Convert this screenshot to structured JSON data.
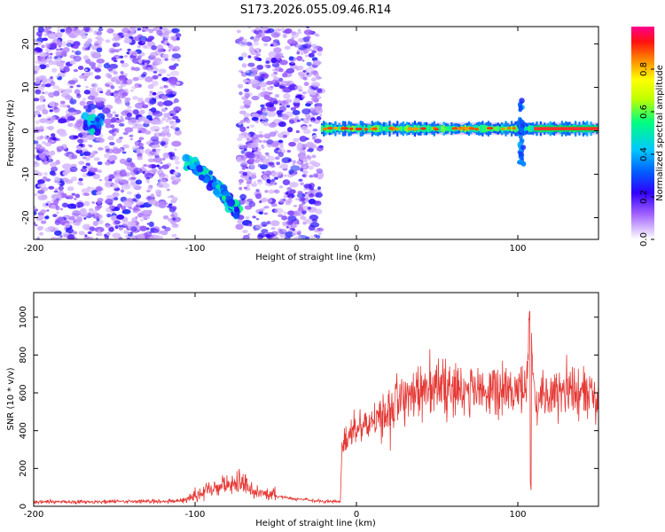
{
  "title": "S173.2026.055.09.46.R14",
  "chart_data": [
    {
      "type": "heatmap",
      "name": "spectrogram",
      "xlabel": "Height of straight line (km)",
      "ylabel": "Frequency (Hz)",
      "xlim": [
        -200,
        150
      ],
      "ylim": [
        -25,
        24
      ],
      "xticks": [
        -200,
        -100,
        0,
        100
      ],
      "xtick_labels": [
        "-200",
        "-100",
        "0",
        "100"
      ],
      "yticks": [
        -20,
        -10,
        0,
        10,
        20
      ],
      "ytick_labels": [
        "-20",
        "-10",
        "0",
        "10",
        "20"
      ],
      "colorbar": {
        "label": "Normalized spectral amplitude",
        "range": [
          0,
          1
        ],
        "ticks": [
          0,
          0.2,
          0.4,
          0.6,
          0.8
        ],
        "tick_labels": [
          "0.0",
          "0.2",
          "0.4",
          "0.6",
          "0.8"
        ],
        "colors": [
          "#ffffff",
          "#8000ff",
          "#0000ff",
          "#00c8ff",
          "#00ff80",
          "#ffff00",
          "#ff8000",
          "#ff0000",
          "#ff0080"
        ]
      },
      "features": [
        {
          "desc": "noise speckle",
          "x_range": [
            -200,
            -20
          ],
          "y_range": [
            -25,
            24
          ],
          "amplitude": 0.2
        },
        {
          "desc": "blob",
          "x": -163,
          "y": 1.5,
          "amplitude": 0.5
        },
        {
          "desc": "curved arc",
          "x_range": [
            -105,
            -73
          ],
          "y_start": -7,
          "y_end": -19,
          "amplitude": 0.55
        },
        {
          "desc": "carrier line",
          "x_range": [
            -22,
            150
          ],
          "y": 0.5,
          "amplitude": 0.85
        },
        {
          "desc": "disturbance",
          "x": 102,
          "y_range": [
            -8,
            7
          ],
          "amplitude": 0.35
        }
      ]
    },
    {
      "type": "line",
      "name": "snr",
      "xlabel": "Height of straight line (km)",
      "ylabel": "SNR (10 * v/v)",
      "xlim": [
        -200,
        150
      ],
      "ylim": [
        0,
        1130
      ],
      "xticks": [
        -200,
        -100,
        0,
        100
      ],
      "xtick_labels": [
        "-200",
        "-100",
        "0",
        "100"
      ],
      "yticks": [
        0,
        200,
        400,
        600,
        800,
        1000
      ],
      "ytick_labels": [
        "0",
        "200",
        "400",
        "600",
        "800",
        "1000"
      ],
      "color": "#e53935",
      "series": [
        {
          "name": "SNR envelope",
          "x": [
            -200,
            -150,
            -110,
            -100,
            -90,
            -75,
            -60,
            -40,
            -20,
            -10,
            -9,
            -5,
            0,
            10,
            18,
            20,
            25,
            35,
            45,
            60,
            80,
            100,
            105,
            108,
            110,
            115,
            130,
            150
          ],
          "y": [
            22,
            25,
            28,
            50,
            90,
            130,
            70,
            40,
            25,
            25,
            300,
            380,
            420,
            470,
            480,
            530,
            560,
            600,
            640,
            620,
            610,
            610,
            600,
            900,
            550,
            600,
            610,
            600
          ]
        }
      ]
    }
  ]
}
